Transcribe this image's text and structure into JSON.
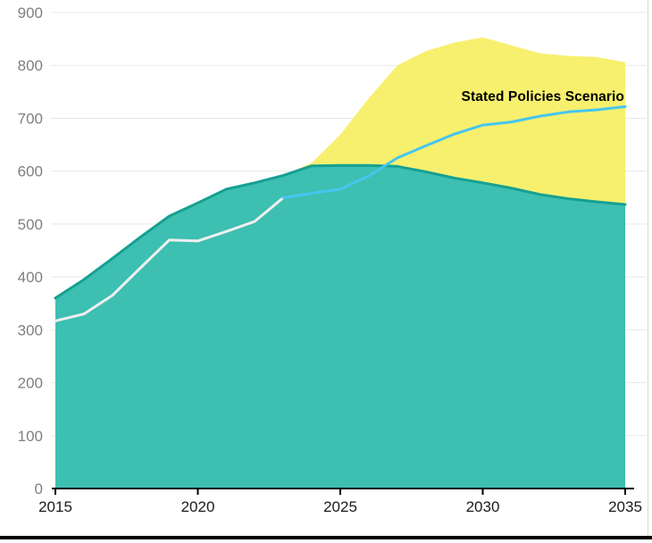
{
  "chart_data": {
    "type": "area",
    "title": "",
    "annotation": "Stated Policies Scenario",
    "xlim": [
      2015,
      2035
    ],
    "ylim": [
      0,
      900
    ],
    "xticks": [
      2015,
      2020,
      2025,
      2030,
      2035
    ],
    "yticks": [
      0,
      100,
      200,
      300,
      400,
      500,
      600,
      700,
      800,
      900
    ],
    "grid": true,
    "legend_position": "none",
    "axis_color": "#000000",
    "gridline_color": "#e8e8e8",
    "ytick_label_color": "#7f7f7f",
    "xtick_label_color": "#1a1a1a",
    "series": [
      {
        "name": "upper-scenario-range",
        "type": "area",
        "fill": "#F7F06E",
        "x": [
          2023,
          2024,
          2025,
          2026,
          2027,
          2028,
          2029,
          2030,
          2031,
          2032,
          2033,
          2034,
          2035
        ],
        "values": [
          592,
          616,
          669,
          738,
          800,
          827,
          843,
          853,
          838,
          823,
          818,
          816,
          806
        ]
      },
      {
        "name": "base-demand-area",
        "type": "area",
        "fill": "#3DBFB1",
        "stroke": "#15A093",
        "x": [
          2015,
          2016,
          2017,
          2018,
          2019,
          2020,
          2021,
          2022,
          2023,
          2024,
          2025,
          2026,
          2027,
          2028,
          2029,
          2030,
          2031,
          2032,
          2033,
          2034,
          2035
        ],
        "values": [
          360,
          395,
          435,
          476,
          515,
          540,
          566,
          578,
          592,
          610,
          611,
          611,
          609,
          599,
          587,
          578,
          568,
          556,
          548,
          542,
          537
        ]
      },
      {
        "name": "historical-line",
        "type": "line",
        "color": "#EFEFEF",
        "x": [
          2015,
          2016,
          2017,
          2018,
          2019,
          2020,
          2021,
          2022,
          2023
        ],
        "values": [
          317,
          330,
          365,
          418,
          470,
          468,
          486,
          505,
          550
        ]
      },
      {
        "name": "stated-policies-line",
        "type": "line",
        "color": "#45C6F0",
        "x": [
          2023,
          2024,
          2025,
          2026,
          2027,
          2028,
          2029,
          2030,
          2031,
          2032,
          2033,
          2034,
          2035
        ],
        "values": [
          550,
          558,
          566,
          591,
          625,
          648,
          670,
          687,
          693,
          704,
          712,
          716,
          722
        ]
      }
    ]
  },
  "window": {
    "bottom_border_color": "#000000",
    "right_border_color": "#d9d9d9"
  }
}
